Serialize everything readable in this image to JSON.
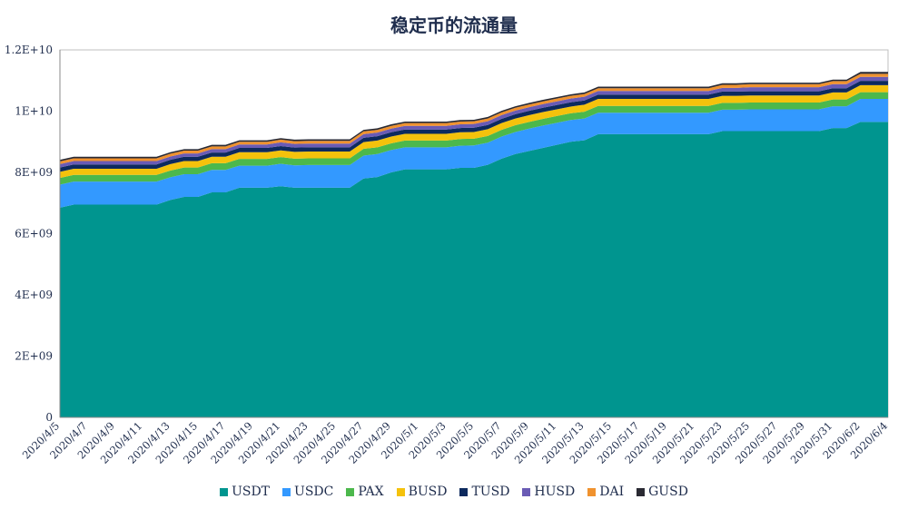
{
  "chart_data": {
    "type": "area",
    "stacked": true,
    "title": "稳定币的流通量",
    "xlabel": "",
    "ylabel": "",
    "ylim": [
      0,
      12000000000.0
    ],
    "yticks": [
      "0",
      "2E+09",
      "4E+09",
      "6E+09",
      "8E+09",
      "1E+10",
      "1.2E+10"
    ],
    "ytick_values": [
      0,
      2000000000.0,
      4000000000.0,
      6000000000.0,
      8000000000.0,
      10000000000.0,
      12000000000.0
    ],
    "legend_position": "bottom",
    "grid": false,
    "categories": [
      "2020/4/5",
      "2020/4/6",
      "2020/4/7",
      "2020/4/8",
      "2020/4/9",
      "2020/4/10",
      "2020/4/11",
      "2020/4/12",
      "2020/4/13",
      "2020/4/14",
      "2020/4/15",
      "2020/4/16",
      "2020/4/17",
      "2020/4/18",
      "2020/4/19",
      "2020/4/20",
      "2020/4/21",
      "2020/4/22",
      "2020/4/23",
      "2020/4/24",
      "2020/4/25",
      "2020/4/26",
      "2020/4/27",
      "2020/4/28",
      "2020/4/29",
      "2020/4/30",
      "2020/5/1",
      "2020/5/2",
      "2020/5/3",
      "2020/5/4",
      "2020/5/5",
      "2020/5/6",
      "2020/5/7",
      "2020/5/8",
      "2020/5/9",
      "2020/5/10",
      "2020/5/11",
      "2020/5/12",
      "2020/5/13",
      "2020/5/14",
      "2020/5/15",
      "2020/5/16",
      "2020/5/17",
      "2020/5/18",
      "2020/5/19",
      "2020/5/20",
      "2020/5/21",
      "2020/5/22",
      "2020/5/23",
      "2020/5/24",
      "2020/5/25",
      "2020/5/26",
      "2020/5/27",
      "2020/5/28",
      "2020/5/29",
      "2020/5/30",
      "2020/5/31",
      "2020/6/1",
      "2020/6/2",
      "2020/6/3",
      "2020/6/4"
    ],
    "series": [
      {
        "name": "USDT",
        "color": "#00958f",
        "values": [
          6850000000.0,
          6950000000.0,
          6950000000.0,
          6950000000.0,
          6950000000.0,
          6950000000.0,
          6950000000.0,
          6950000000.0,
          7100000000.0,
          7200000000.0,
          7200000000.0,
          7350000000.0,
          7350000000.0,
          7500000000.0,
          7500000000.0,
          7500000000.0,
          7550000000.0,
          7500000000.0,
          7500000000.0,
          7500000000.0,
          7500000000.0,
          7500000000.0,
          7800000000.0,
          7850000000.0,
          8000000000.0,
          8100000000.0,
          8100000000.0,
          8100000000.0,
          8100000000.0,
          8150000000.0,
          8150000000.0,
          8250000000.0,
          8450000000.0,
          8600000000.0,
          8700000000.0,
          8800000000.0,
          8900000000.0,
          9000000000.0,
          9050000000.0,
          9250000000.0,
          9250000000.0,
          9250000000.0,
          9250000000.0,
          9250000000.0,
          9250000000.0,
          9250000000.0,
          9250000000.0,
          9250000000.0,
          9350000000.0,
          9350000000.0,
          9350000000.0,
          9350000000.0,
          9350000000.0,
          9350000000.0,
          9350000000.0,
          9350000000.0,
          9450000000.0,
          9450000000.0,
          9650000000.0,
          9650000000.0,
          9650000000.0
        ]
      },
      {
        "name": "USDC",
        "color": "#3399ff",
        "values": [
          750000000.0,
          750000000.0,
          750000000.0,
          750000000.0,
          750000000.0,
          750000000.0,
          750000000.0,
          750000000.0,
          740000000.0,
          740000000.0,
          740000000.0,
          730000000.0,
          730000000.0,
          720000000.0,
          720000000.0,
          720000000.0,
          730000000.0,
          730000000.0,
          740000000.0,
          740000000.0,
          740000000.0,
          740000000.0,
          750000000.0,
          750000000.0,
          730000000.0,
          720000000.0,
          720000000.0,
          720000000.0,
          720000000.0,
          720000000.0,
          730000000.0,
          720000000.0,
          720000000.0,
          720000000.0,
          730000000.0,
          730000000.0,
          720000000.0,
          710000000.0,
          710000000.0,
          700000000.0,
          700000000.0,
          700000000.0,
          700000000.0,
          700000000.0,
          700000000.0,
          700000000.0,
          700000000.0,
          700000000.0,
          700000000.0,
          700000000.0,
          710000000.0,
          710000000.0,
          710000000.0,
          710000000.0,
          710000000.0,
          710000000.0,
          710000000.0,
          710000000.0,
          750000000.0,
          750000000.0,
          750000000.0
        ]
      },
      {
        "name": "PAX",
        "color": "#4cb84c",
        "values": [
          220000000.0,
          220000000.0,
          220000000.0,
          220000000.0,
          220000000.0,
          220000000.0,
          220000000.0,
          220000000.0,
          220000000.0,
          220000000.0,
          220000000.0,
          220000000.0,
          220000000.0,
          220000000.0,
          220000000.0,
          220000000.0,
          220000000.0,
          220000000.0,
          220000000.0,
          220000000.0,
          220000000.0,
          220000000.0,
          220000000.0,
          220000000.0,
          220000000.0,
          220000000.0,
          220000000.0,
          220000000.0,
          220000000.0,
          220000000.0,
          220000000.0,
          220000000.0,
          220000000.0,
          220000000.0,
          220000000.0,
          220000000.0,
          220000000.0,
          220000000.0,
          220000000.0,
          220000000.0,
          220000000.0,
          220000000.0,
          220000000.0,
          220000000.0,
          220000000.0,
          220000000.0,
          220000000.0,
          220000000.0,
          220000000.0,
          220000000.0,
          220000000.0,
          220000000.0,
          220000000.0,
          220000000.0,
          220000000.0,
          220000000.0,
          220000000.0,
          220000000.0,
          220000000.0,
          220000000.0,
          220000000.0
        ]
      },
      {
        "name": "BUSD",
        "color": "#f5c20c",
        "values": [
          200000000.0,
          200000000.0,
          200000000.0,
          200000000.0,
          200000000.0,
          200000000.0,
          200000000.0,
          200000000.0,
          210000000.0,
          210000000.0,
          210000000.0,
          210000000.0,
          210000000.0,
          220000000.0,
          220000000.0,
          220000000.0,
          220000000.0,
          220000000.0,
          220000000.0,
          220000000.0,
          220000000.0,
          220000000.0,
          220000000.0,
          220000000.0,
          220000000.0,
          220000000.0,
          220000000.0,
          220000000.0,
          220000000.0,
          220000000.0,
          220000000.0,
          220000000.0,
          220000000.0,
          220000000.0,
          220000000.0,
          220000000.0,
          220000000.0,
          220000000.0,
          230000000.0,
          230000000.0,
          230000000.0,
          230000000.0,
          230000000.0,
          230000000.0,
          230000000.0,
          230000000.0,
          230000000.0,
          230000000.0,
          230000000.0,
          230000000.0,
          230000000.0,
          230000000.0,
          230000000.0,
          230000000.0,
          230000000.0,
          230000000.0,
          230000000.0,
          230000000.0,
          230000000.0,
          230000000.0,
          230000000.0
        ]
      },
      {
        "name": "TUSD",
        "color": "#0d2a5e",
        "values": [
          140000000.0,
          140000000.0,
          140000000.0,
          140000000.0,
          140000000.0,
          140000000.0,
          140000000.0,
          140000000.0,
          140000000.0,
          140000000.0,
          140000000.0,
          140000000.0,
          140000000.0,
          140000000.0,
          140000000.0,
          140000000.0,
          140000000.0,
          140000000.0,
          140000000.0,
          140000000.0,
          140000000.0,
          140000000.0,
          140000000.0,
          140000000.0,
          140000000.0,
          140000000.0,
          140000000.0,
          140000000.0,
          140000000.0,
          140000000.0,
          140000000.0,
          140000000.0,
          140000000.0,
          140000000.0,
          140000000.0,
          140000000.0,
          140000000.0,
          140000000.0,
          140000000.0,
          140000000.0,
          140000000.0,
          140000000.0,
          140000000.0,
          140000000.0,
          140000000.0,
          140000000.0,
          140000000.0,
          140000000.0,
          140000000.0,
          140000000.0,
          140000000.0,
          140000000.0,
          140000000.0,
          140000000.0,
          140000000.0,
          140000000.0,
          140000000.0,
          140000000.0,
          140000000.0,
          140000000.0,
          140000000.0
        ]
      },
      {
        "name": "HUSD",
        "color": "#6a5bb5",
        "values": [
          110000000.0,
          110000000.0,
          110000000.0,
          110000000.0,
          110000000.0,
          110000000.0,
          110000000.0,
          110000000.0,
          110000000.0,
          110000000.0,
          110000000.0,
          110000000.0,
          110000000.0,
          110000000.0,
          110000000.0,
          110000000.0,
          120000000.0,
          120000000.0,
          120000000.0,
          120000000.0,
          120000000.0,
          120000000.0,
          120000000.0,
          120000000.0,
          120000000.0,
          120000000.0,
          120000000.0,
          120000000.0,
          120000000.0,
          120000000.0,
          120000000.0,
          120000000.0,
          120000000.0,
          120000000.0,
          120000000.0,
          120000000.0,
          120000000.0,
          120000000.0,
          120000000.0,
          120000000.0,
          120000000.0,
          120000000.0,
          120000000.0,
          120000000.0,
          120000000.0,
          120000000.0,
          120000000.0,
          120000000.0,
          120000000.0,
          120000000.0,
          130000000.0,
          130000000.0,
          130000000.0,
          130000000.0,
          130000000.0,
          130000000.0,
          130000000.0,
          130000000.0,
          130000000.0,
          130000000.0,
          130000000.0
        ]
      },
      {
        "name": "DAI",
        "color": "#f0922e",
        "values": [
          90000000.0,
          90000000.0,
          90000000.0,
          90000000.0,
          90000000.0,
          90000000.0,
          90000000.0,
          90000000.0,
          90000000.0,
          90000000.0,
          90000000.0,
          90000000.0,
          90000000.0,
          90000000.0,
          90000000.0,
          90000000.0,
          90000000.0,
          90000000.0,
          90000000.0,
          90000000.0,
          90000000.0,
          90000000.0,
          90000000.0,
          90000000.0,
          90000000.0,
          90000000.0,
          90000000.0,
          90000000.0,
          90000000.0,
          90000000.0,
          90000000.0,
          90000000.0,
          90000000.0,
          90000000.0,
          90000000.0,
          90000000.0,
          90000000.0,
          90000000.0,
          90000000.0,
          90000000.0,
          90000000.0,
          90000000.0,
          90000000.0,
          90000000.0,
          90000000.0,
          90000000.0,
          90000000.0,
          90000000.0,
          100000000.0,
          100000000.0,
          100000000.0,
          100000000.0,
          100000000.0,
          100000000.0,
          100000000.0,
          100000000.0,
          100000000.0,
          100000000.0,
          100000000.0,
          100000000.0,
          100000000.0
        ]
      },
      {
        "name": "GUSD",
        "color": "#2a2a33",
        "values": [
          50000000.0,
          50000000.0,
          50000000.0,
          50000000.0,
          50000000.0,
          50000000.0,
          50000000.0,
          50000000.0,
          50000000.0,
          50000000.0,
          50000000.0,
          50000000.0,
          50000000.0,
          50000000.0,
          50000000.0,
          50000000.0,
          50000000.0,
          50000000.0,
          50000000.0,
          50000000.0,
          50000000.0,
          50000000.0,
          50000000.0,
          50000000.0,
          50000000.0,
          50000000.0,
          50000000.0,
          50000000.0,
          50000000.0,
          50000000.0,
          50000000.0,
          50000000.0,
          50000000.0,
          50000000.0,
          50000000.0,
          50000000.0,
          50000000.0,
          50000000.0,
          50000000.0,
          50000000.0,
          50000000.0,
          50000000.0,
          50000000.0,
          50000000.0,
          50000000.0,
          50000000.0,
          50000000.0,
          50000000.0,
          50000000.0,
          50000000.0,
          50000000.0,
          50000000.0,
          50000000.0,
          50000000.0,
          50000000.0,
          50000000.0,
          50000000.0,
          50000000.0,
          60000000.0,
          60000000.0,
          60000000.0
        ]
      }
    ]
  }
}
